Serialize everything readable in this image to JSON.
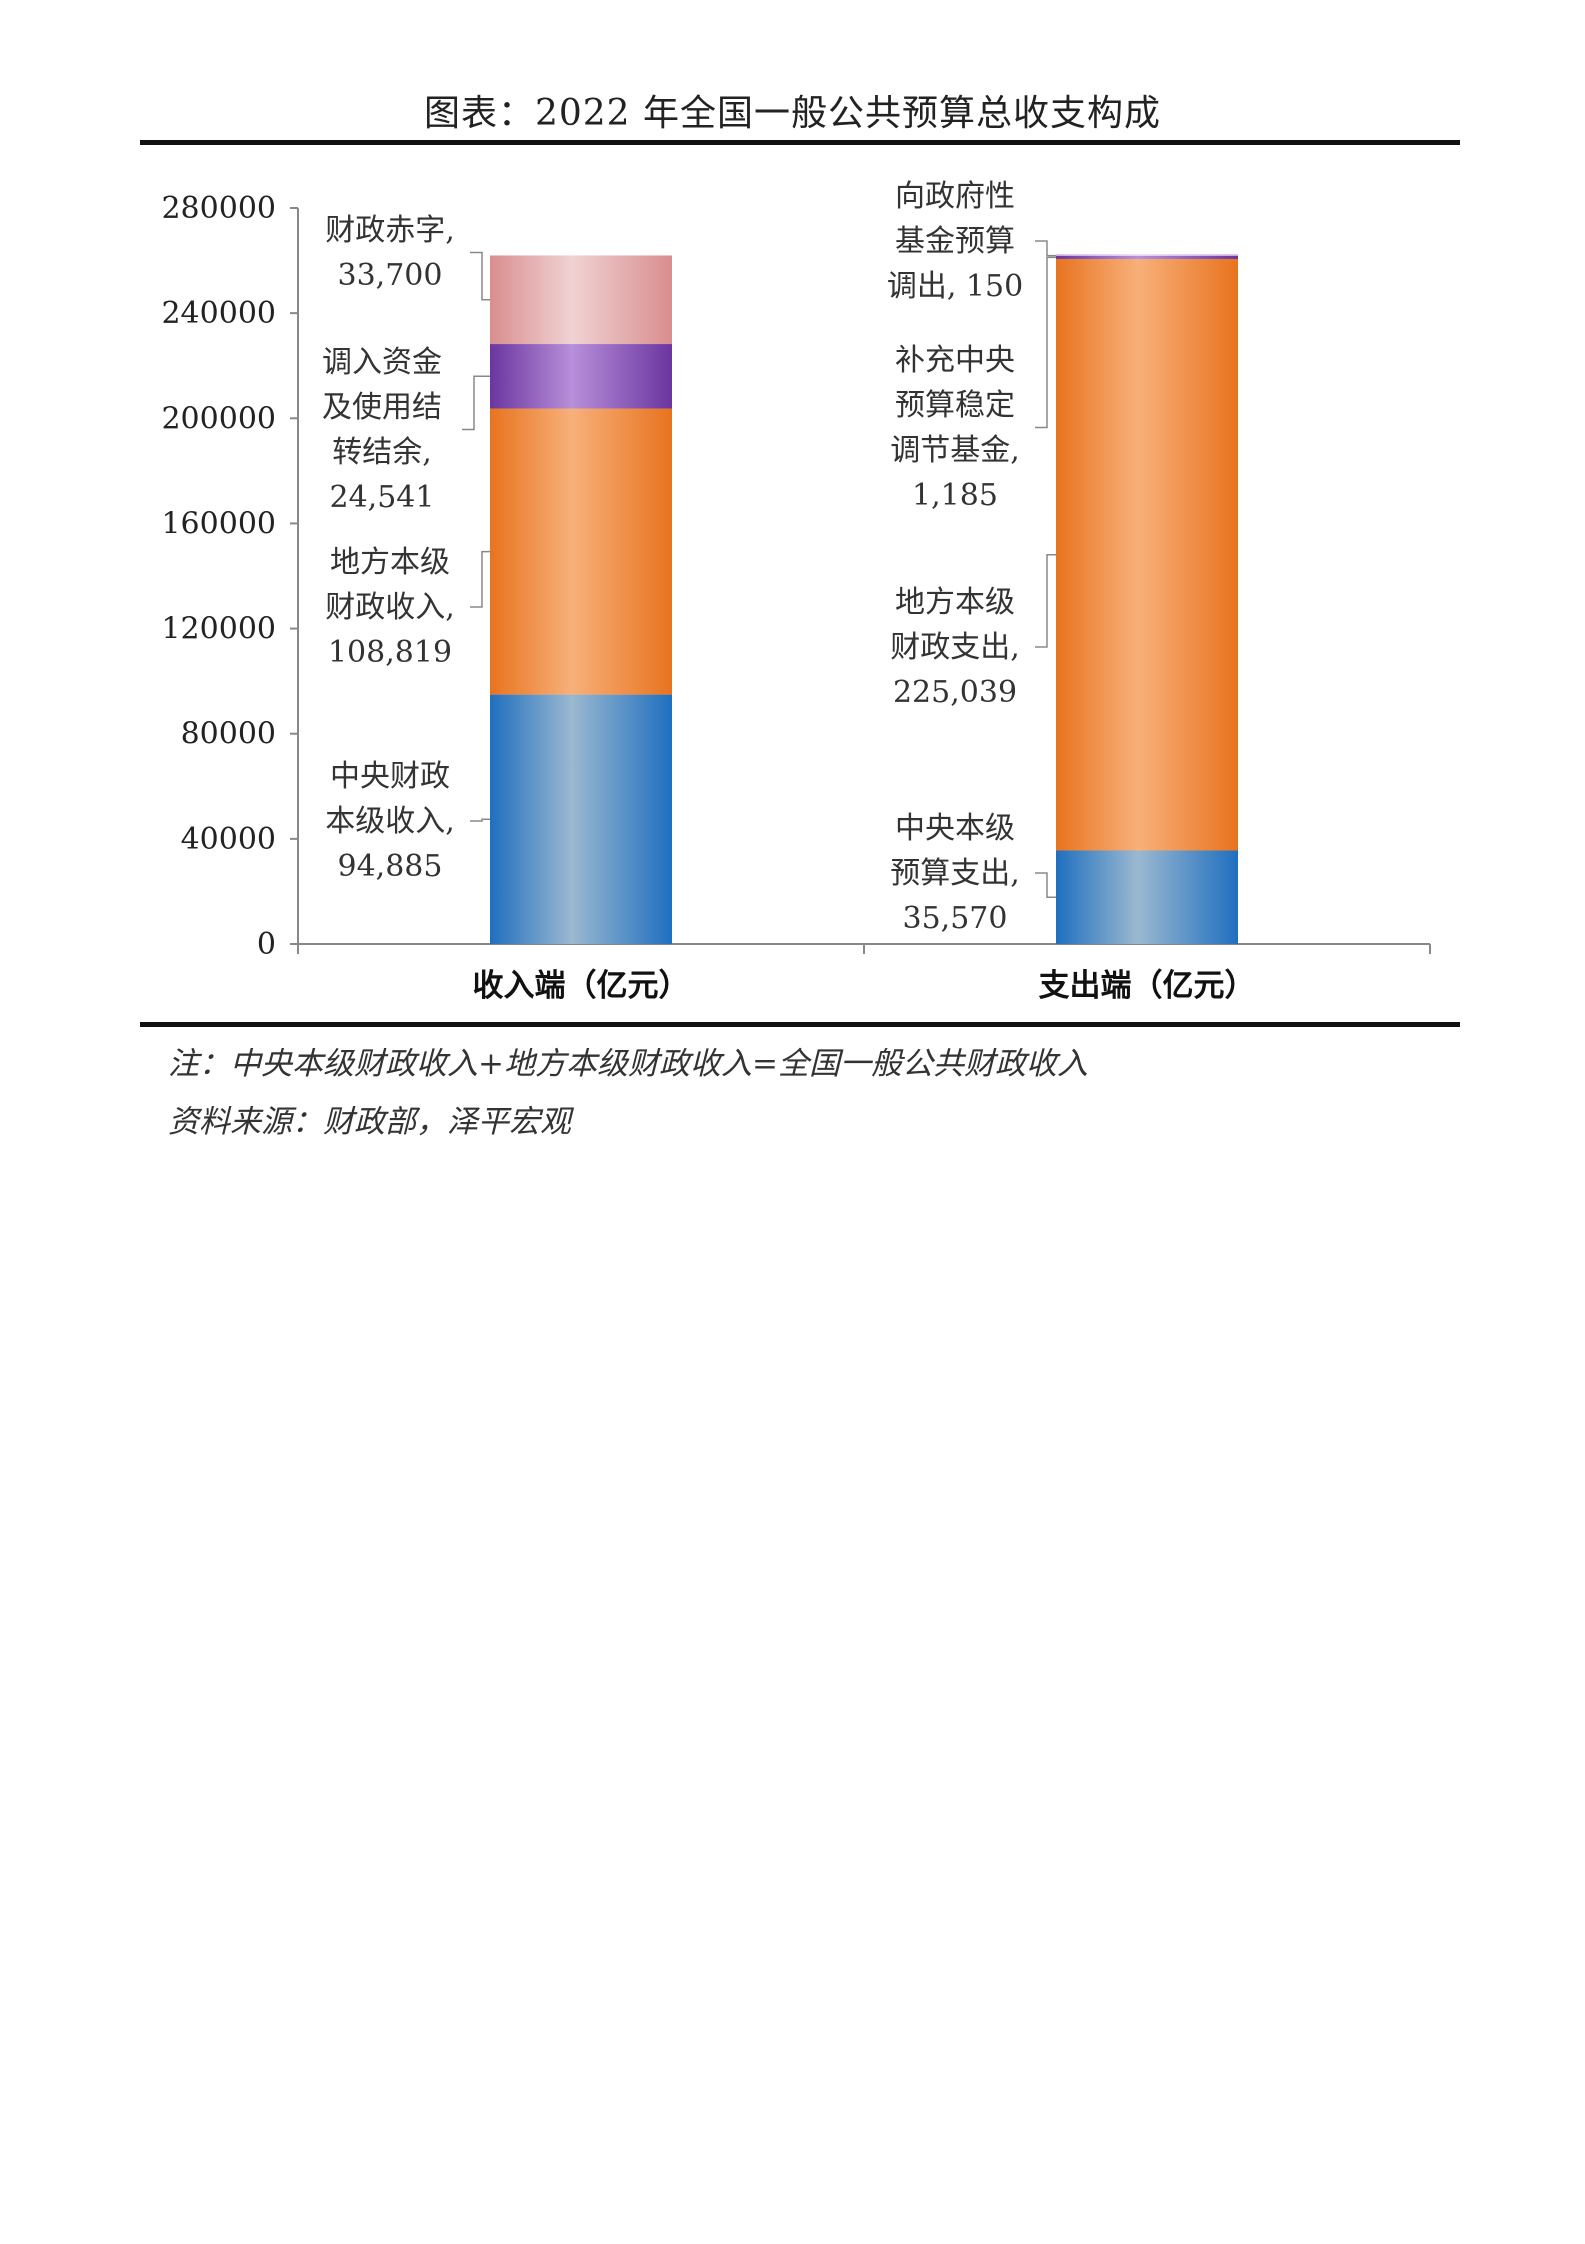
{
  "title": "图表：2022 年全国一般公共预算总收支构成",
  "note": "注：中央本级财政收入+地方本级财政收入=全国一般公共财政收入",
  "source": "资料来源：财政部，泽平宏观",
  "chart_data": {
    "type": "bar",
    "stacked": true,
    "categories": [
      "收入端（亿元）",
      "支出端（亿元）"
    ],
    "y_ticks": [
      "0",
      "40000",
      "80000",
      "120000",
      "160000",
      "200000",
      "240000",
      "280000"
    ],
    "ylim": [
      0,
      280000
    ],
    "stacks": [
      {
        "segments": [
          {
            "id": "c-rev",
            "value": 94885,
            "label_lines": [
              "中央财政",
              "本级收入,",
              "94,885"
            ],
            "color": "#1f6fbf",
            "mid": "#9bb8d0"
          },
          {
            "id": "l-rev",
            "value": 108819,
            "label_lines": [
              "地方本级",
              "财政收入,",
              "108,819"
            ],
            "color": "#e8731f",
            "mid": "#f7b07a"
          },
          {
            "id": "transfer",
            "value": 24541,
            "label_lines": [
              "调入资金",
              "及使用结",
              "转结余,",
              "24,541"
            ],
            "color": "#6a35a0",
            "mid": "#b88fd9"
          },
          {
            "id": "deficit",
            "value": 33700,
            "label_lines": [
              "财政赤字,",
              "33,700"
            ],
            "color": "#d98e8f",
            "mid": "#f0d2d2"
          }
        ]
      },
      {
        "segments": [
          {
            "id": "c-exp",
            "value": 35570,
            "label_lines": [
              "中央本级",
              "预算支出,",
              "35,570"
            ],
            "color": "#1f6fbf",
            "mid": "#9bb8d0"
          },
          {
            "id": "l-exp",
            "value": 225039,
            "label_lines": [
              "地方本级",
              "财政支出,",
              "225,039"
            ],
            "color": "#e8731f",
            "mid": "#f7b07a"
          },
          {
            "id": "stab",
            "value": 1185,
            "label_lines": [
              "补充中央",
              "预算稳定",
              "调节基金,",
              "1,185"
            ],
            "color": "#6a35a0",
            "mid": "#b88fd9"
          },
          {
            "id": "fund",
            "value": 150,
            "label_lines": [
              "向政府性",
              "基金预算",
              "调出, 150"
            ],
            "color": "#c9a4e0",
            "mid": "#e6d3f2"
          }
        ]
      }
    ]
  }
}
